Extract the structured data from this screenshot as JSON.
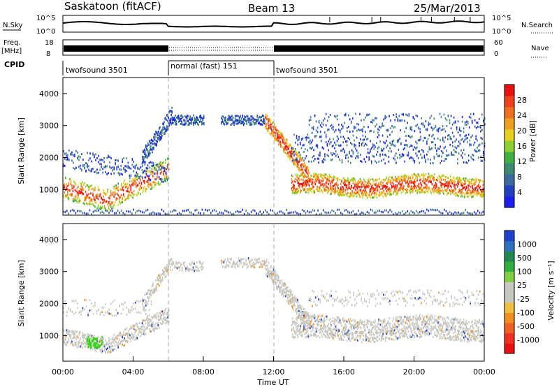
{
  "header": {
    "site": "Saskatoon (fitACF)",
    "beam": "Beam 13",
    "date": "25/Mar/2013"
  },
  "top_panels": {
    "nsky_label": "N.Sky",
    "nsky_ticks": [
      "10^5",
      "10^0"
    ],
    "nsearch_label": "N.Search",
    "nsearch_ticks": [
      "10^5",
      "10^0"
    ],
    "freq_label": "Freq.",
    "freq_unit": "[MHz]",
    "freq_ticks": [
      "18",
      "8"
    ],
    "nave_label": "Nave",
    "nave_ticks": [
      "60",
      "0"
    ],
    "cpid_label": "CPID",
    "cpid_segments": [
      {
        "label": "twofsound 3501",
        "start_h": 0,
        "end_h": 6
      },
      {
        "label": "normal (fast) 151",
        "start_h": 6,
        "end_h": 12
      },
      {
        "label": "twofsound 3501",
        "start_h": 12,
        "end_h": 24
      }
    ]
  },
  "chart_data": [
    {
      "type": "heatmap",
      "name": "power",
      "ylabel": "Slant Range [km]",
      "xlim_hours": [
        0,
        24
      ],
      "ylim": [
        200,
        4500
      ],
      "yticks": [
        "1000",
        "2000",
        "3000",
        "4000"
      ],
      "colorbar": {
        "label": "Power [dB]",
        "ticks": [
          "4",
          "8",
          "12",
          "16",
          "20",
          "24",
          "28"
        ],
        "colors": [
          "#1c1cf0",
          "#2040c0",
          "#3a6aa0",
          "#3c8a70",
          "#40b040",
          "#90d030",
          "#e8d020",
          "#f0a020",
          "#f07020",
          "#f04020",
          "#e81010"
        ]
      },
      "vlines_hours": [
        6,
        12
      ]
    },
    {
      "type": "heatmap",
      "name": "velocity",
      "ylabel": "Slant Range [km]",
      "xlabel": "Time UT",
      "xlim_hours": [
        0,
        24
      ],
      "ylim": [
        200,
        4500
      ],
      "yticks": [
        "1000",
        "2000",
        "3000",
        "4000"
      ],
      "xticks": [
        "00:00",
        "04:00",
        "08:00",
        "12:00",
        "16:00",
        "20:00",
        "00:00"
      ],
      "colorbar": {
        "label": "Velocity [m s⁻¹]",
        "ticks": [
          "1000",
          "500",
          "100",
          "25",
          "-25",
          "-100",
          "-500",
          "-1000"
        ],
        "colors": [
          "#2040d0",
          "#3070c0",
          "#208850",
          "#30b040",
          "#80d040",
          "#c8c8c0",
          "#c8c8c0",
          "#f0c040",
          "#f09020",
          "#f06020",
          "#f03020",
          "#e81010"
        ]
      },
      "vlines_hours": [
        6,
        12
      ]
    }
  ]
}
